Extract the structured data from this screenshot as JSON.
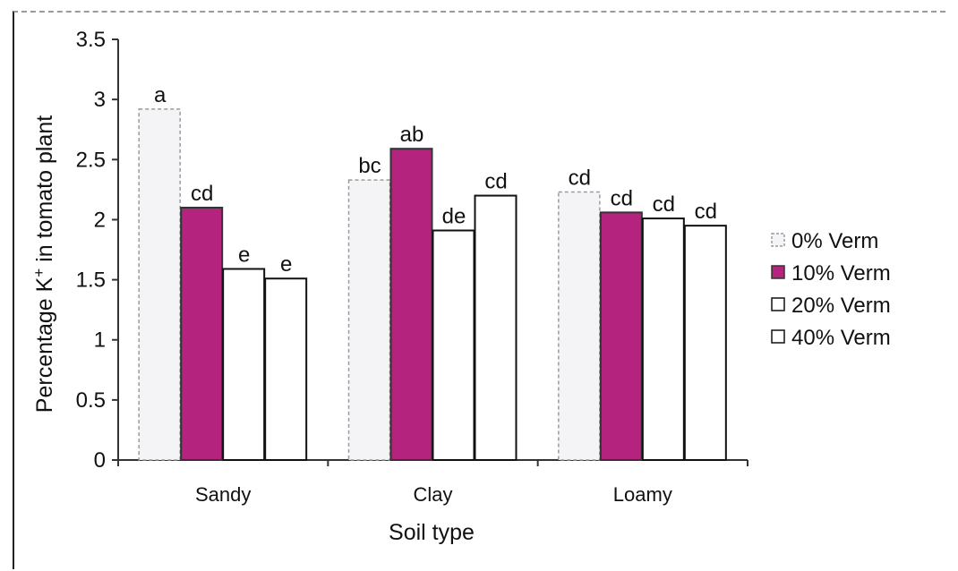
{
  "chart_data": {
    "type": "bar",
    "title": "",
    "xlabel": "Soil type",
    "ylabel": "Percentage K+ in tomato plant",
    "ylabel_main": "Percentage K",
    "ylabel_sup": "+",
    "ylabel_rest": " in tomato plant",
    "ylim": [
      0,
      3.5
    ],
    "yticks": [
      0,
      0.5,
      1,
      1.5,
      2,
      2.5,
      3,
      3.5
    ],
    "ytick_labels": [
      "0",
      "0.5",
      "1",
      "1.5",
      "2",
      "2.5",
      "3",
      "3.5"
    ],
    "categories": [
      "Sandy",
      "Clay",
      "Loamy"
    ],
    "series": [
      {
        "name": "0% Verm",
        "color": "#f4f4f6",
        "stroke": "#9a9aa0",
        "dashed": true,
        "values": [
          2.92,
          2.33,
          2.23
        ],
        "labels": [
          "a",
          "bc",
          "cd"
        ]
      },
      {
        "name": "10% Verm",
        "color": "#b4247e",
        "stroke": "#333333",
        "dashed": false,
        "values": [
          2.1,
          2.59,
          2.06
        ],
        "labels": [
          "cd",
          "ab",
          "cd"
        ]
      },
      {
        "name": "20% Verm",
        "color": "#ffffff",
        "stroke": "#111111",
        "dashed": false,
        "values": [
          1.59,
          1.91,
          2.01
        ],
        "labels": [
          "e",
          "de",
          "cd"
        ]
      },
      {
        "name": "40% Verm",
        "color": "#ffffff",
        "stroke": "#111111",
        "dashed": false,
        "values": [
          1.51,
          2.2,
          1.95
        ],
        "labels": [
          "e",
          "cd",
          "cd"
        ]
      }
    ],
    "legend_position": "right",
    "grid": false
  }
}
